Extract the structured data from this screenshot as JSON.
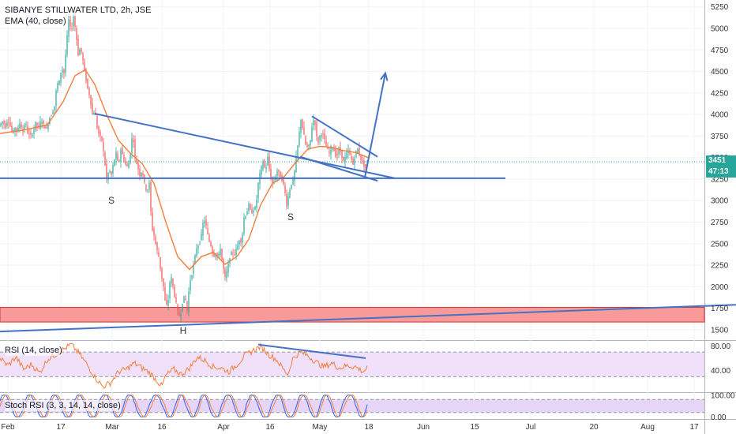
{
  "header": {
    "title": "SIBANYE STILLWATER LTD, 2h, JSE",
    "indicator": "EMA (40, close)"
  },
  "rsi_panel": {
    "label": "RSI (14, close)"
  },
  "stoch_panel": {
    "label": "Stoch RSI (3, 3, 14, 14, close)"
  },
  "last_price": {
    "value": "3451",
    "countdown": "47:13"
  },
  "colors": {
    "up": "#26a69a",
    "down": "#ef5350",
    "ema": "#f57c3b",
    "trendline": "#4472c4",
    "zone_fill": "#f99a9a",
    "zone_border": "#d32f2f",
    "rsi": "#f57c3b",
    "rsi_band": "#f0e0fa",
    "stoch_k": "#2962ff",
    "stoch_d": "#f57c3b",
    "stoch_band": "#e6d5f7",
    "last_price_bg": "#26a69a",
    "countdown_bg": "#26a69a"
  },
  "chart_data": [
    {
      "type": "candlestick",
      "title": "SIBANYE STILLWATER LTD, 2h, JSE",
      "series": [
        {
          "name": "EMA (40, close)"
        }
      ],
      "y_ticks": [
        5250,
        5000,
        4750,
        4500,
        4250,
        4000,
        3750,
        3500,
        3250,
        3000,
        2750,
        2500,
        2250,
        2000,
        1750,
        1500
      ],
      "y_range": [
        1380,
        5330
      ],
      "x_ticks": [
        "Feb",
        "17",
        "Mar",
        "16",
        "Apr",
        "16",
        "May",
        "18",
        "Jun",
        "15",
        "Jul",
        "20",
        "Aug",
        "17"
      ],
      "price_path": [
        [
          0,
          3870
        ],
        [
          4,
          3920
        ],
        [
          8,
          3860
        ],
        [
          11,
          3950
        ],
        [
          14,
          3870
        ],
        [
          17,
          3770
        ],
        [
          20,
          3850
        ],
        [
          23,
          3800
        ],
        [
          26,
          3900
        ],
        [
          30,
          3800
        ],
        [
          33,
          3920
        ],
        [
          36,
          3790
        ],
        [
          40,
          3750
        ],
        [
          43,
          3800
        ],
        [
          46,
          3900
        ],
        [
          50,
          3850
        ],
        [
          53,
          3940
        ],
        [
          56,
          3880
        ],
        [
          60,
          3830
        ],
        [
          63,
          3950
        ],
        [
          66,
          4000
        ],
        [
          70,
          4100
        ],
        [
          73,
          4350
        ],
        [
          76,
          4380
        ],
        [
          79,
          4550
        ],
        [
          82,
          4480
        ],
        [
          85,
          4800
        ],
        [
          88,
          5100
        ],
        [
          91,
          4960
        ],
        [
          94,
          5140
        ],
        [
          97,
          4960
        ],
        [
          100,
          4700
        ],
        [
          103,
          4780
        ],
        [
          106,
          4620
        ],
        [
          109,
          4450
        ],
        [
          112,
          4300
        ],
        [
          115,
          4200
        ],
        [
          118,
          4000
        ],
        [
          121,
          4050
        ],
        [
          124,
          3850
        ],
        [
          127,
          3750
        ],
        [
          130,
          3700
        ],
        [
          133,
          3500
        ],
        [
          136,
          3250
        ],
        [
          139,
          3350
        ],
        [
          142,
          3300
        ],
        [
          145,
          3450
        ],
        [
          148,
          3550
        ],
        [
          151,
          3400
        ],
        [
          154,
          3600
        ],
        [
          157,
          3500
        ],
        [
          160,
          3420
        ],
        [
          163,
          3380
        ],
        [
          166,
          3550
        ],
        [
          169,
          3800
        ],
        [
          172,
          3500
        ],
        [
          175,
          3400
        ],
        [
          178,
          3300
        ],
        [
          181,
          3350
        ],
        [
          184,
          3200
        ],
        [
          187,
          3100
        ],
        [
          190,
          3200
        ],
        [
          193,
          2700
        ],
        [
          196,
          2600
        ],
        [
          199,
          2450
        ],
        [
          202,
          2350
        ],
        [
          205,
          2150
        ],
        [
          208,
          2000
        ],
        [
          211,
          1750
        ],
        [
          214,
          1850
        ],
        [
          217,
          2150
        ],
        [
          220,
          2000
        ],
        [
          223,
          1850
        ],
        [
          226,
          1700
        ],
        [
          229,
          1650
        ],
        [
          232,
          1820
        ],
        [
          235,
          1900
        ],
        [
          238,
          1720
        ],
        [
          241,
          2050
        ],
        [
          244,
          2150
        ],
        [
          247,
          2300
        ],
        [
          250,
          2450
        ],
        [
          253,
          2500
        ],
        [
          256,
          2600
        ],
        [
          259,
          2800
        ],
        [
          262,
          2700
        ],
        [
          265,
          2550
        ],
        [
          268,
          2480
        ],
        [
          271,
          2350
        ],
        [
          274,
          2400
        ],
        [
          277,
          2320
        ],
        [
          280,
          2450
        ],
        [
          283,
          2250
        ],
        [
          286,
          2100
        ],
        [
          289,
          2200
        ],
        [
          292,
          2350
        ],
        [
          295,
          2400
        ],
        [
          298,
          2380
        ],
        [
          301,
          2450
        ],
        [
          304,
          2550
        ],
        [
          307,
          2520
        ],
        [
          310,
          2800
        ],
        [
          313,
          2850
        ],
        [
          316,
          2950
        ],
        [
          319,
          2850
        ],
        [
          322,
          2900
        ],
        [
          325,
          2920
        ],
        [
          328,
          3200
        ],
        [
          331,
          3350
        ],
        [
          334,
          3450
        ],
        [
          337,
          3350
        ],
        [
          340,
          3500
        ],
        [
          343,
          3300
        ],
        [
          346,
          3200
        ],
        [
          349,
          3250
        ],
        [
          352,
          3350
        ],
        [
          355,
          3300
        ],
        [
          358,
          3250
        ],
        [
          361,
          3150
        ],
        [
          364,
          2950
        ],
        [
          367,
          3100
        ],
        [
          370,
          3200
        ],
        [
          373,
          3250
        ],
        [
          376,
          3500
        ],
        [
          379,
          3700
        ],
        [
          382,
          3950
        ],
        [
          385,
          3800
        ],
        [
          388,
          3650
        ],
        [
          391,
          3600
        ],
        [
          394,
          3700
        ],
        [
          397,
          3950
        ],
        [
          400,
          3900
        ],
        [
          403,
          3650
        ],
        [
          406,
          3750
        ],
        [
          409,
          3800
        ],
        [
          412,
          3700
        ],
        [
          415,
          3600
        ],
        [
          418,
          3550
        ],
        [
          421,
          3650
        ],
        [
          424,
          3580
        ],
        [
          427,
          3500
        ],
        [
          430,
          3600
        ],
        [
          433,
          3550
        ],
        [
          436,
          3450
        ],
        [
          439,
          3520
        ],
        [
          442,
          3580
        ],
        [
          445,
          3500
        ],
        [
          448,
          3420
        ],
        [
          451,
          3550
        ],
        [
          454,
          3600
        ],
        [
          457,
          3500
        ],
        [
          460,
          3450
        ],
        [
          463,
          3380
        ],
        [
          466,
          3451
        ]
      ],
      "ema_path": [
        [
          0,
          3780
        ],
        [
          30,
          3820
        ],
        [
          60,
          3880
        ],
        [
          80,
          4150
        ],
        [
          95,
          4450
        ],
        [
          108,
          4520
        ],
        [
          120,
          4350
        ],
        [
          135,
          4000
        ],
        [
          150,
          3700
        ],
        [
          165,
          3550
        ],
        [
          180,
          3430
        ],
        [
          195,
          3200
        ],
        [
          210,
          2750
        ],
        [
          225,
          2350
        ],
        [
          240,
          2200
        ],
        [
          255,
          2350
        ],
        [
          270,
          2400
        ],
        [
          285,
          2260
        ],
        [
          300,
          2350
        ],
        [
          315,
          2550
        ],
        [
          330,
          2950
        ],
        [
          345,
          3200
        ],
        [
          360,
          3280
        ],
        [
          375,
          3450
        ],
        [
          390,
          3600
        ],
        [
          405,
          3630
        ],
        [
          420,
          3620
        ],
        [
          435,
          3580
        ],
        [
          450,
          3560
        ],
        [
          466,
          3500
        ]
      ],
      "annotations": {
        "labels": [
          {
            "text": "S"
          },
          {
            "text": "S"
          },
          {
            "text": "H"
          }
        ],
        "trendlines": [
          {
            "from": [
              120,
              4010
            ],
            "to": [
              500,
              3260
            ]
          },
          {
            "from": [
              0,
              3260
            ],
            "to": [
              640,
              3260
            ]
          },
          {
            "from": [
              395,
              3980
            ],
            "to": [
              478,
              3510
            ]
          },
          {
            "from": [
              380,
              3510
            ],
            "to": [
              478,
              3230
            ]
          },
          {
            "from": [
              0,
              1480
            ],
            "to": [
              932,
              1790
            ]
          }
        ],
        "arrow": {
          "from": [
            462,
            3270
          ],
          "to": [
            488,
            4480
          ]
        },
        "zone": {
          "low": 1590,
          "high": 1760
        }
      }
    },
    {
      "type": "line",
      "title": "RSI (14, close)",
      "y_ticks": [
        80,
        40
      ],
      "y_range": [
        5,
        88
      ],
      "band": [
        30,
        70
      ],
      "path": [
        [
          0,
          60
        ],
        [
          10,
          48
        ],
        [
          20,
          62
        ],
        [
          30,
          42
        ],
        [
          40,
          50
        ],
        [
          50,
          36
        ],
        [
          60,
          58
        ],
        [
          70,
          66
        ],
        [
          80,
          74
        ],
        [
          90,
          82
        ],
        [
          100,
          68
        ],
        [
          110,
          50
        ],
        [
          120,
          30
        ],
        [
          130,
          14
        ],
        [
          140,
          20
        ],
        [
          150,
          38
        ],
        [
          160,
          42
        ],
        [
          170,
          52
        ],
        [
          180,
          44
        ],
        [
          190,
          36
        ],
        [
          200,
          22
        ],
        [
          205,
          14
        ],
        [
          210,
          32
        ],
        [
          220,
          42
        ],
        [
          230,
          34
        ],
        [
          240,
          44
        ],
        [
          250,
          62
        ],
        [
          260,
          56
        ],
        [
          270,
          46
        ],
        [
          280,
          44
        ],
        [
          290,
          38
        ],
        [
          300,
          50
        ],
        [
          310,
          64
        ],
        [
          320,
          72
        ],
        [
          330,
          79
        ],
        [
          340,
          66
        ],
        [
          350,
          58
        ],
        [
          360,
          40
        ],
        [
          365,
          34
        ],
        [
          370,
          58
        ],
        [
          380,
          70
        ],
        [
          390,
          64
        ],
        [
          400,
          54
        ],
        [
          410,
          46
        ],
        [
          420,
          52
        ],
        [
          430,
          44
        ],
        [
          440,
          48
        ],
        [
          450,
          46
        ],
        [
          460,
          38
        ],
        [
          466,
          46
        ]
      ],
      "divergence": {
        "from": [
          327,
          82
        ],
        "to": [
          463,
          60
        ]
      }
    },
    {
      "type": "line",
      "title": "Stoch RSI (3, 3, 14, 14, close)",
      "y_ticks": [
        100,
        0
      ],
      "y_range": [
        -10,
        110
      ],
      "band": [
        20,
        80
      ]
    }
  ]
}
